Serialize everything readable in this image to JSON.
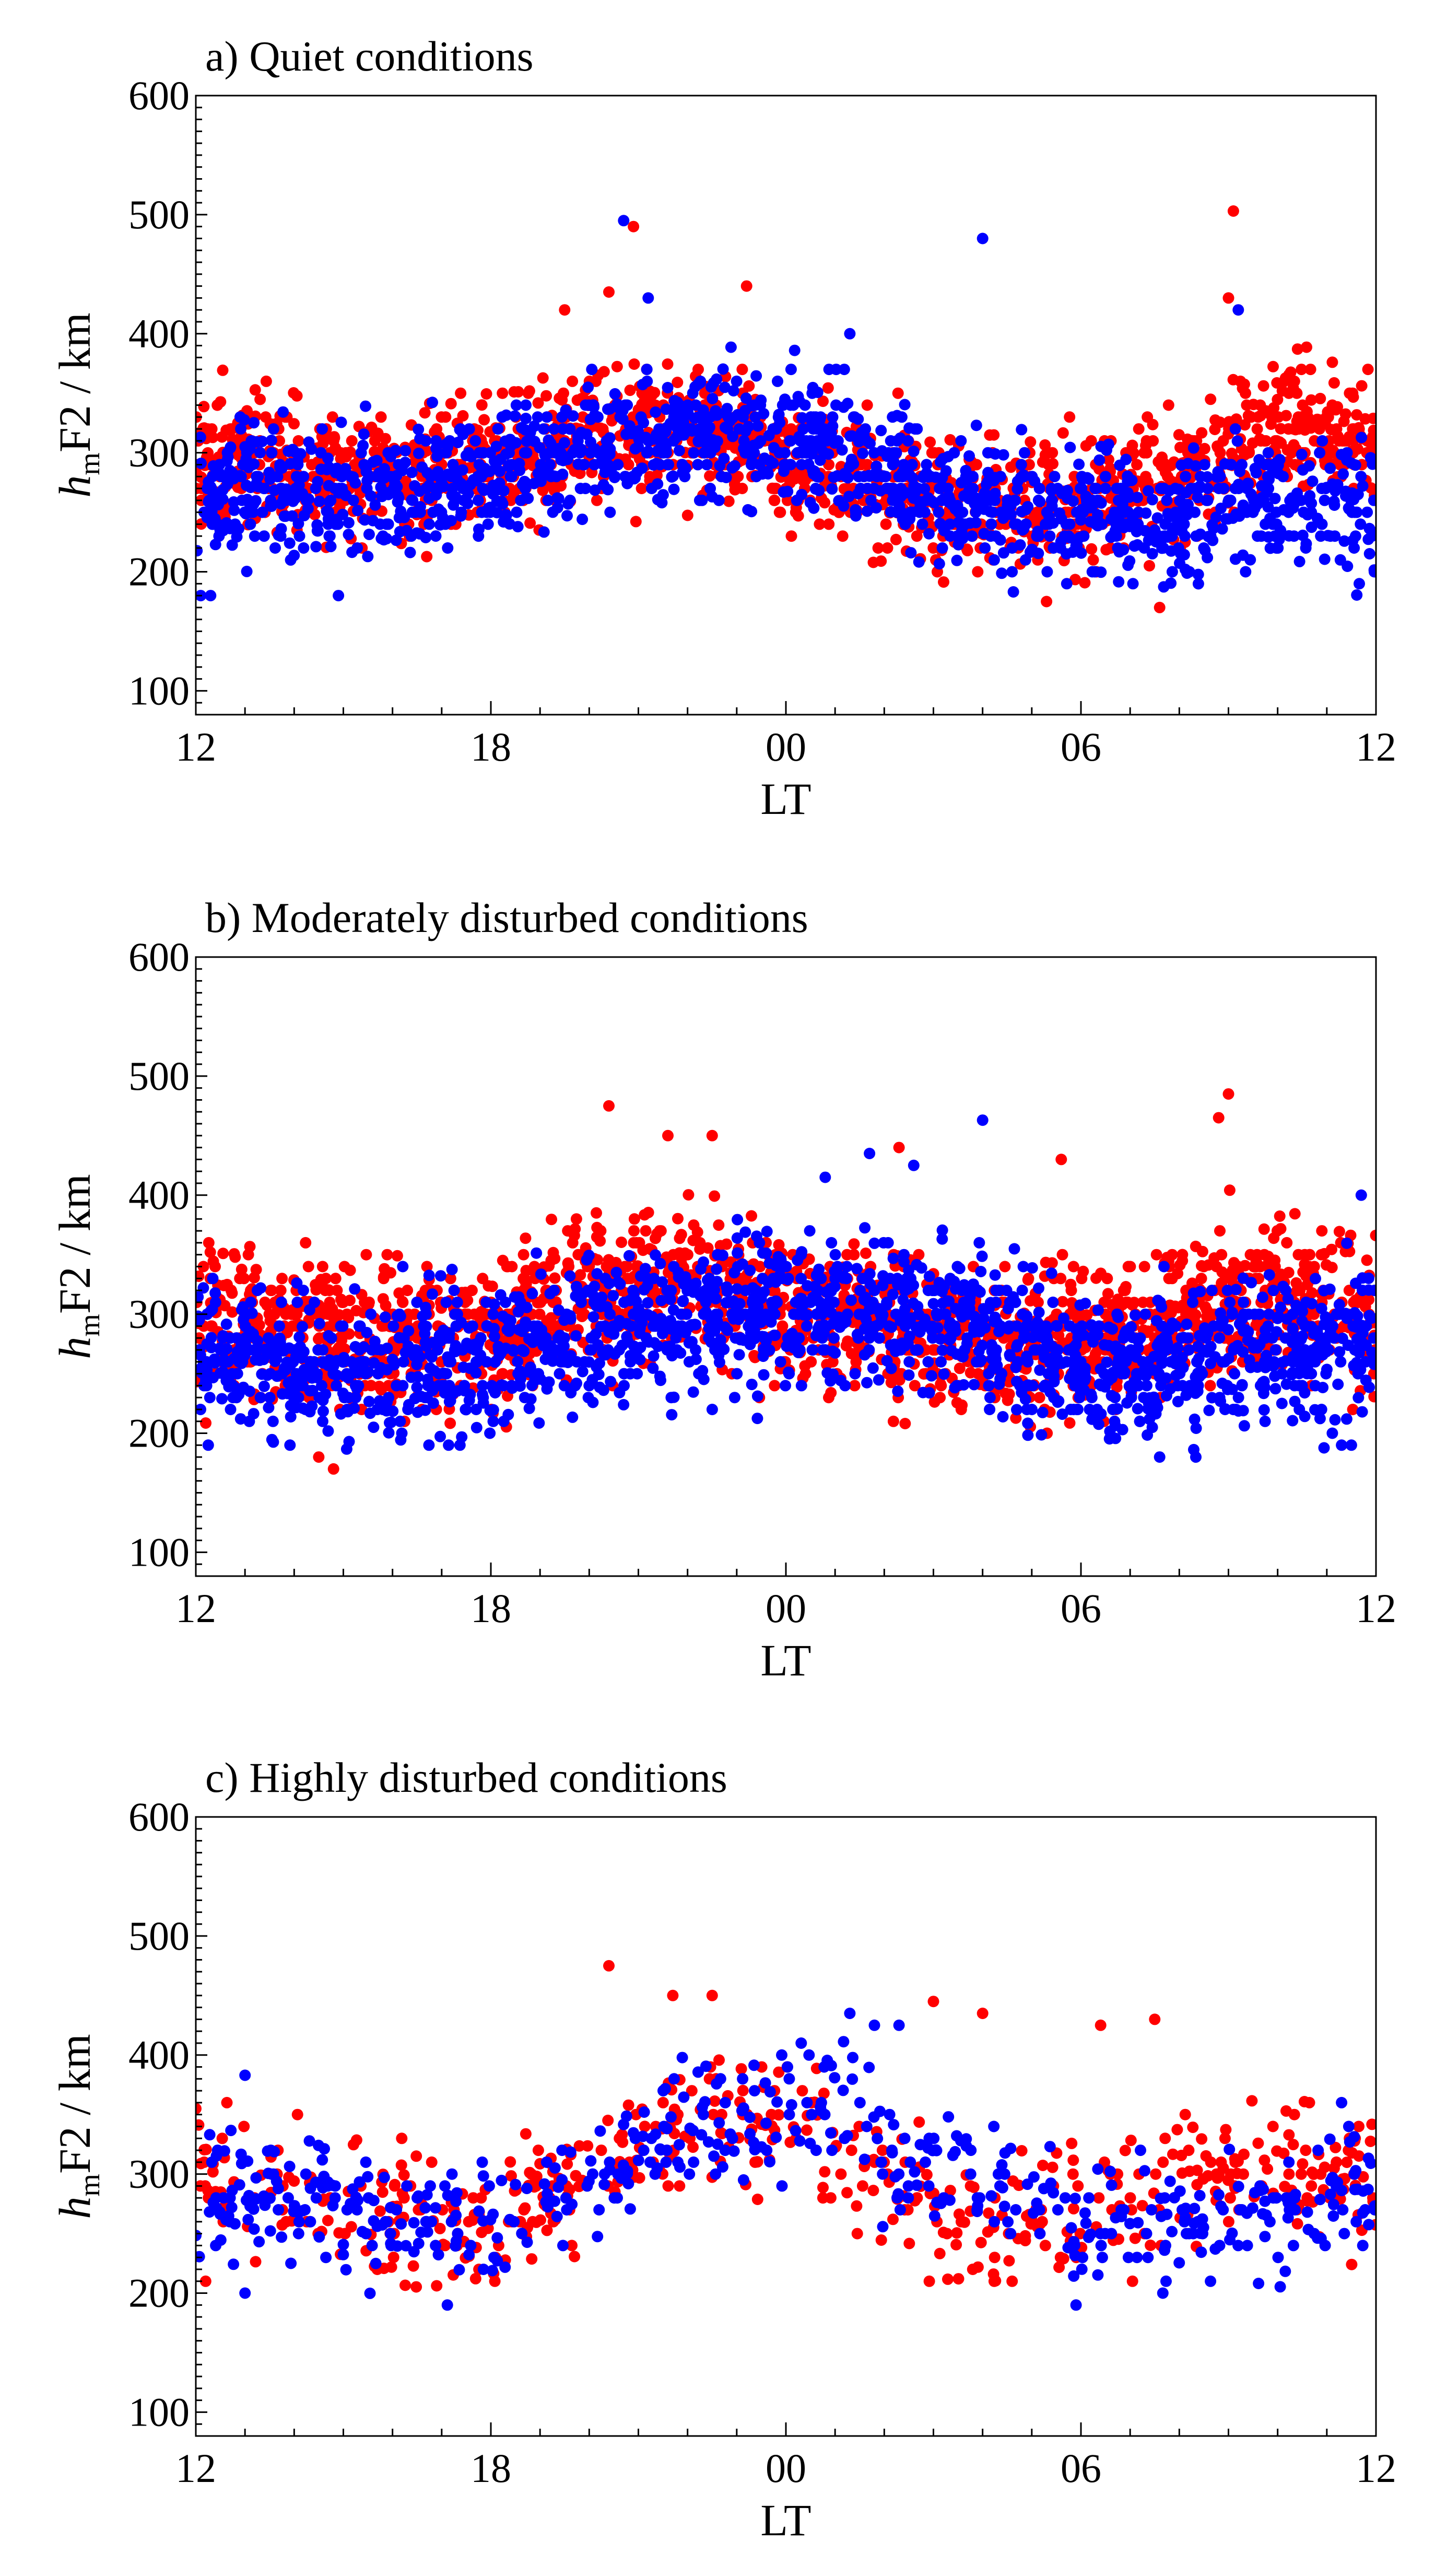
{
  "chart_data": [
    {
      "type": "scatter",
      "panel": "a",
      "title": "a) Quiet conditions",
      "xlabel": "LT",
      "ylabel": {
        "main": "h",
        "sub": "m",
        "rest": "F2 / km"
      },
      "xticks": [
        "12",
        "18",
        "00",
        "06",
        "12"
      ],
      "yticks": [
        100,
        200,
        300,
        400,
        500,
        600
      ],
      "xlim_hours": [
        0,
        24
      ],
      "ylim": [
        80,
        600
      ],
      "series": [
        {
          "name": "red",
          "color": "#ff0000",
          "trend": [
            [
              0,
              300
            ],
            [
              2,
              290
            ],
            [
              4,
              280
            ],
            [
              6,
              290
            ],
            [
              8,
              320
            ],
            [
              10,
              315
            ],
            [
              12,
              290
            ],
            [
              14,
              270
            ],
            [
              16,
              255
            ],
            [
              18,
              250
            ],
            [
              20,
              280
            ],
            [
              22,
              320
            ],
            [
              24,
              315
            ]
          ],
          "spread": 38,
          "minFloor": 190,
          "pointsPerHour": 60,
          "seed": 11,
          "outliers": [
            [
              8.9,
              490
            ],
            [
              8.4,
              435
            ],
            [
              11.2,
              440
            ],
            [
              21.1,
              503
            ],
            [
              21.0,
              430
            ],
            [
              7.5,
              420
            ],
            [
              19.6,
              170
            ],
            [
              17.3,
              175
            ]
          ]
        },
        {
          "name": "blue",
          "color": "#0000ff",
          "trend": [
            [
              0,
              270
            ],
            [
              2,
              270
            ],
            [
              4,
              265
            ],
            [
              6,
              280
            ],
            [
              8,
              300
            ],
            [
              10,
              320
            ],
            [
              12,
              320
            ],
            [
              14,
              285
            ],
            [
              16,
              255
            ],
            [
              18,
              245
            ],
            [
              20,
              245
            ],
            [
              22,
              260
            ],
            [
              24,
              250
            ]
          ],
          "spread": 38,
          "minFloor": 180,
          "pointsPerHour": 60,
          "seed": 23,
          "outliers": [
            [
              8.7,
              495
            ],
            [
              16.0,
              480
            ],
            [
              9.2,
              430
            ],
            [
              21.2,
              420
            ],
            [
              13.3,
              400
            ],
            [
              0.1,
              180
            ],
            [
              0.3,
              180
            ],
            [
              2.9,
              180
            ]
          ]
        }
      ]
    },
    {
      "type": "scatter",
      "panel": "b",
      "title": "b) Moderately disturbed conditions",
      "xlabel": "LT",
      "ylabel": {
        "main": "h",
        "sub": "m",
        "rest": "F2 / km"
      },
      "xticks": [
        "12",
        "18",
        "00",
        "06",
        "12"
      ],
      "yticks": [
        100,
        200,
        300,
        400,
        500,
        600
      ],
      "xlim_hours": [
        0,
        24
      ],
      "ylim": [
        80,
        600
      ],
      "series": [
        {
          "name": "red",
          "color": "#ff0000",
          "trend": [
            [
              0,
              295
            ],
            [
              2,
              285
            ],
            [
              4,
              275
            ],
            [
              6,
              280
            ],
            [
              8,
              320
            ],
            [
              10,
              330
            ],
            [
              12,
              300
            ],
            [
              14,
              290
            ],
            [
              16,
              280
            ],
            [
              18,
              270
            ],
            [
              20,
              300
            ],
            [
              22,
              320
            ],
            [
              24,
              300
            ]
          ],
          "spread": 42,
          "minFloor": 200,
          "pointsPerHour": 70,
          "seed": 37,
          "outliers": [
            [
              8.4,
              475
            ],
            [
              9.6,
              450
            ],
            [
              10.5,
              450
            ],
            [
              21.0,
              485
            ],
            [
              20.8,
              465
            ],
            [
              14.3,
              440
            ],
            [
              17.6,
              430
            ],
            [
              2.5,
              180
            ],
            [
              2.8,
              170
            ]
          ]
        },
        {
          "name": "blue",
          "color": "#0000ff",
          "trend": [
            [
              0,
              265
            ],
            [
              2,
              260
            ],
            [
              4,
              255
            ],
            [
              6,
              260
            ],
            [
              8,
              285
            ],
            [
              10,
              300
            ],
            [
              12,
              300
            ],
            [
              14,
              305
            ],
            [
              16,
              290
            ],
            [
              18,
              255
            ],
            [
              20,
              255
            ],
            [
              22,
              270
            ],
            [
              24,
              280
            ]
          ],
          "spread": 42,
          "minFloor": 180,
          "pointsPerHour": 70,
          "seed": 41,
          "outliers": [
            [
              16.0,
              463
            ],
            [
              13.7,
              435
            ],
            [
              14.6,
              425
            ],
            [
              12.8,
              415
            ],
            [
              23.7,
              400
            ],
            [
              19.6,
              180
            ],
            [
              23.3,
              190
            ],
            [
              23.5,
              190
            ]
          ]
        }
      ]
    },
    {
      "type": "scatter",
      "panel": "c",
      "title": "c) Highly disturbed conditions",
      "xlabel": "LT",
      "ylabel": {
        "main": "h",
        "sub": "m",
        "rest": "F2 / km"
      },
      "xticks": [
        "12",
        "18",
        "00",
        "06",
        "12"
      ],
      "yticks": [
        100,
        200,
        300,
        400,
        500,
        600
      ],
      "xlim_hours": [
        0,
        24
      ],
      "ylim": [
        80,
        600
      ],
      "series": [
        {
          "name": "red",
          "color": "#ff0000",
          "trend": [
            [
              0,
              305
            ],
            [
              2,
              290
            ],
            [
              4,
              270
            ],
            [
              6,
              255
            ],
            [
              8,
              305
            ],
            [
              10,
              345
            ],
            [
              12,
              350
            ],
            [
              14,
              290
            ],
            [
              16,
              255
            ],
            [
              18,
              265
            ],
            [
              20,
              295
            ],
            [
              22,
              310
            ],
            [
              24,
              300
            ]
          ],
          "spread": 40,
          "minFloor": 205,
          "pointsPerHour": 22,
          "seed": 53,
          "outliers": [
            [
              8.4,
              475
            ],
            [
              9.7,
              450
            ],
            [
              10.5,
              450
            ],
            [
              15.0,
              445
            ],
            [
              16.0,
              435
            ],
            [
              18.4,
              425
            ],
            [
              19.5,
              430
            ],
            [
              0.0,
              355
            ],
            [
              0.2,
              210
            ]
          ]
        },
        {
          "name": "blue",
          "color": "#0000ff",
          "trend": [
            [
              0,
              290
            ],
            [
              2,
              285
            ],
            [
              4,
              265
            ],
            [
              6,
              250
            ],
            [
              8,
              300
            ],
            [
              10,
              340
            ],
            [
              12,
              350
            ],
            [
              13.5,
              360
            ],
            [
              14,
              310
            ],
            [
              16,
              300
            ],
            [
              18,
              260
            ],
            [
              20,
              255
            ],
            [
              22,
              270
            ],
            [
              24,
              290
            ]
          ],
          "spread": 38,
          "minFloor": 190,
          "pointsPerHour": 22,
          "seed": 67,
          "outliers": [
            [
              1.0,
              383
            ],
            [
              1.0,
              200
            ],
            [
              13.3,
              435
            ],
            [
              14.3,
              425
            ],
            [
              13.8,
              425
            ],
            [
              17.9,
              190
            ],
            [
              23.3,
              360
            ]
          ]
        }
      ]
    }
  ]
}
